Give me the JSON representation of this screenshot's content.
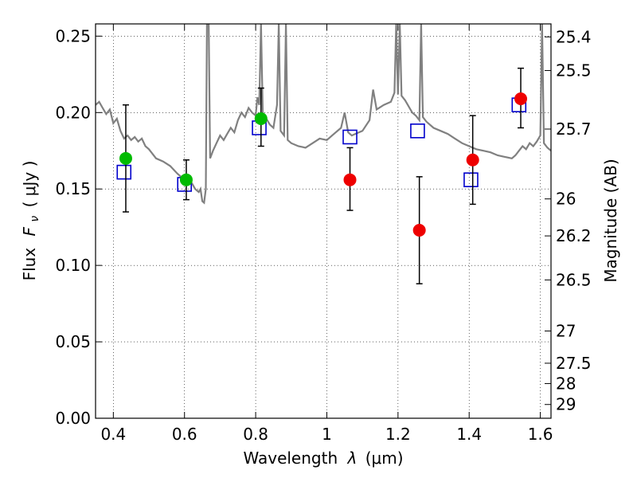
{
  "chart_data": {
    "type": "scatter",
    "xlabel_prefix": "Wavelength",
    "xlabel_symbol": "λ",
    "xlabel_unit": "(μm)",
    "ylabel_prefix": "Flux",
    "ylabel_symbol": "F",
    "ylabel_subscript": "ν",
    "ylabel_unit": "( μJy )",
    "y2label": "Magnitude (AB)",
    "xlim": [
      0.35,
      1.63
    ],
    "ylim": [
      0.0,
      0.258
    ],
    "grid": true,
    "x_ticks": [
      0.4,
      0.6,
      0.8,
      1.0,
      1.2,
      1.4,
      1.6
    ],
    "x_tick_labels": [
      "0.4",
      "0.6",
      "0.8",
      "1",
      "1.2",
      "1.4",
      "1.6"
    ],
    "y_ticks": [
      0.0,
      0.05,
      0.1,
      0.15,
      0.2,
      0.25
    ],
    "y_tick_labels": [
      "0.00",
      "0.05",
      "0.10",
      "0.15",
      "0.20",
      "0.25"
    ],
    "y2_ticks": [
      {
        "label": "25.4",
        "flux": 0.2495
      },
      {
        "label": "25.5",
        "flux": 0.2275
      },
      {
        "label": "25.7",
        "flux": 0.1892
      },
      {
        "label": "26",
        "flux": 0.1435
      },
      {
        "label": "26.2",
        "flux": 0.1193
      },
      {
        "label": "26.5",
        "flux": 0.0905
      },
      {
        "label": "27",
        "flux": 0.0571
      },
      {
        "label": "27.5",
        "flux": 0.036
      },
      {
        "label": "28",
        "flux": 0.0227
      },
      {
        "label": "29",
        "flux": 0.009
      }
    ],
    "template_color": "#808080",
    "template_spectrum": [
      [
        0.35,
        0.205
      ],
      [
        0.36,
        0.207
      ],
      [
        0.37,
        0.203
      ],
      [
        0.38,
        0.199
      ],
      [
        0.39,
        0.202
      ],
      [
        0.4,
        0.193
      ],
      [
        0.41,
        0.196
      ],
      [
        0.42,
        0.188
      ],
      [
        0.43,
        0.183
      ],
      [
        0.44,
        0.185
      ],
      [
        0.45,
        0.182
      ],
      [
        0.46,
        0.184
      ],
      [
        0.47,
        0.181
      ],
      [
        0.48,
        0.183
      ],
      [
        0.49,
        0.178
      ],
      [
        0.5,
        0.176
      ],
      [
        0.52,
        0.17
      ],
      [
        0.54,
        0.168
      ],
      [
        0.56,
        0.165
      ],
      [
        0.58,
        0.16
      ],
      [
        0.6,
        0.156
      ],
      [
        0.61,
        0.155
      ],
      [
        0.62,
        0.154
      ],
      [
        0.63,
        0.15
      ],
      [
        0.64,
        0.148
      ],
      [
        0.645,
        0.15
      ],
      [
        0.65,
        0.142
      ],
      [
        0.655,
        0.141
      ],
      [
        0.66,
        0.15
      ],
      [
        0.663,
        0.258
      ],
      [
        0.668,
        0.258
      ],
      [
        0.672,
        0.17
      ],
      [
        0.68,
        0.175
      ],
      [
        0.69,
        0.18
      ],
      [
        0.7,
        0.185
      ],
      [
        0.71,
        0.182
      ],
      [
        0.72,
        0.186
      ],
      [
        0.73,
        0.19
      ],
      [
        0.74,
        0.187
      ],
      [
        0.75,
        0.195
      ],
      [
        0.76,
        0.2
      ],
      [
        0.77,
        0.197
      ],
      [
        0.78,
        0.203
      ],
      [
        0.79,
        0.2
      ],
      [
        0.8,
        0.198
      ],
      [
        0.805,
        0.21
      ],
      [
        0.81,
        0.205
      ],
      [
        0.815,
        0.258
      ],
      [
        0.82,
        0.2
      ],
      [
        0.83,
        0.196
      ],
      [
        0.84,
        0.192
      ],
      [
        0.85,
        0.19
      ],
      [
        0.86,
        0.205
      ],
      [
        0.865,
        0.258
      ],
      [
        0.87,
        0.188
      ],
      [
        0.88,
        0.185
      ],
      [
        0.885,
        0.258
      ],
      [
        0.89,
        0.182
      ],
      [
        0.9,
        0.18
      ],
      [
        0.92,
        0.178
      ],
      [
        0.94,
        0.177
      ],
      [
        0.96,
        0.18
      ],
      [
        0.98,
        0.183
      ],
      [
        1.0,
        0.182
      ],
      [
        1.02,
        0.186
      ],
      [
        1.04,
        0.19
      ],
      [
        1.05,
        0.2
      ],
      [
        1.06,
        0.187
      ],
      [
        1.07,
        0.185
      ],
      [
        1.08,
        0.186
      ],
      [
        1.1,
        0.188
      ],
      [
        1.12,
        0.195
      ],
      [
        1.13,
        0.215
      ],
      [
        1.14,
        0.202
      ],
      [
        1.16,
        0.205
      ],
      [
        1.18,
        0.207
      ],
      [
        1.19,
        0.213
      ],
      [
        1.195,
        0.258
      ],
      [
        1.2,
        0.212
      ],
      [
        1.205,
        0.258
      ],
      [
        1.21,
        0.211
      ],
      [
        1.22,
        0.208
      ],
      [
        1.24,
        0.2
      ],
      [
        1.25,
        0.198
      ],
      [
        1.26,
        0.195
      ],
      [
        1.265,
        0.258
      ],
      [
        1.27,
        0.197
      ],
      [
        1.28,
        0.194
      ],
      [
        1.3,
        0.19
      ],
      [
        1.32,
        0.188
      ],
      [
        1.34,
        0.186
      ],
      [
        1.36,
        0.183
      ],
      [
        1.38,
        0.18
      ],
      [
        1.4,
        0.178
      ],
      [
        1.42,
        0.176
      ],
      [
        1.44,
        0.175
      ],
      [
        1.46,
        0.174
      ],
      [
        1.48,
        0.172
      ],
      [
        1.5,
        0.171
      ],
      [
        1.52,
        0.17
      ],
      [
        1.53,
        0.172
      ],
      [
        1.54,
        0.175
      ],
      [
        1.55,
        0.178
      ],
      [
        1.56,
        0.176
      ],
      [
        1.57,
        0.18
      ],
      [
        1.58,
        0.178
      ],
      [
        1.59,
        0.181
      ],
      [
        1.6,
        0.185
      ],
      [
        1.605,
        0.258
      ],
      [
        1.61,
        0.18
      ],
      [
        1.62,
        0.177
      ],
      [
        1.63,
        0.175
      ]
    ],
    "model_points": {
      "marker": "open-square",
      "color": "#0000cc",
      "points": [
        [
          0.43,
          0.161
        ],
        [
          0.6,
          0.153
        ],
        [
          0.81,
          0.19
        ],
        [
          1.065,
          0.184
        ],
        [
          1.255,
          0.188
        ],
        [
          1.405,
          0.156
        ],
        [
          1.54,
          0.205
        ]
      ]
    },
    "detections": {
      "marker": "filled-circle",
      "color": "#00bb00",
      "points": [
        {
          "x": 0.435,
          "y": 0.17,
          "ylow": 0.135,
          "yhigh": 0.205
        },
        {
          "x": 0.605,
          "y": 0.156,
          "ylow": 0.143,
          "yhigh": 0.169
        },
        {
          "x": 0.815,
          "y": 0.196,
          "ylow": 0.178,
          "yhigh": 0.216
        }
      ]
    },
    "ir_detections": {
      "marker": "filled-circle",
      "color": "#ee0000",
      "points": [
        {
          "x": 1.065,
          "y": 0.156,
          "ylow": 0.136,
          "yhigh": 0.177
        },
        {
          "x": 1.26,
          "y": 0.123,
          "ylow": 0.088,
          "yhigh": 0.158
        },
        {
          "x": 1.41,
          "y": 0.169,
          "ylow": 0.14,
          "yhigh": 0.198
        },
        {
          "x": 1.545,
          "y": 0.209,
          "ylow": 0.19,
          "yhigh": 0.229
        }
      ]
    }
  }
}
